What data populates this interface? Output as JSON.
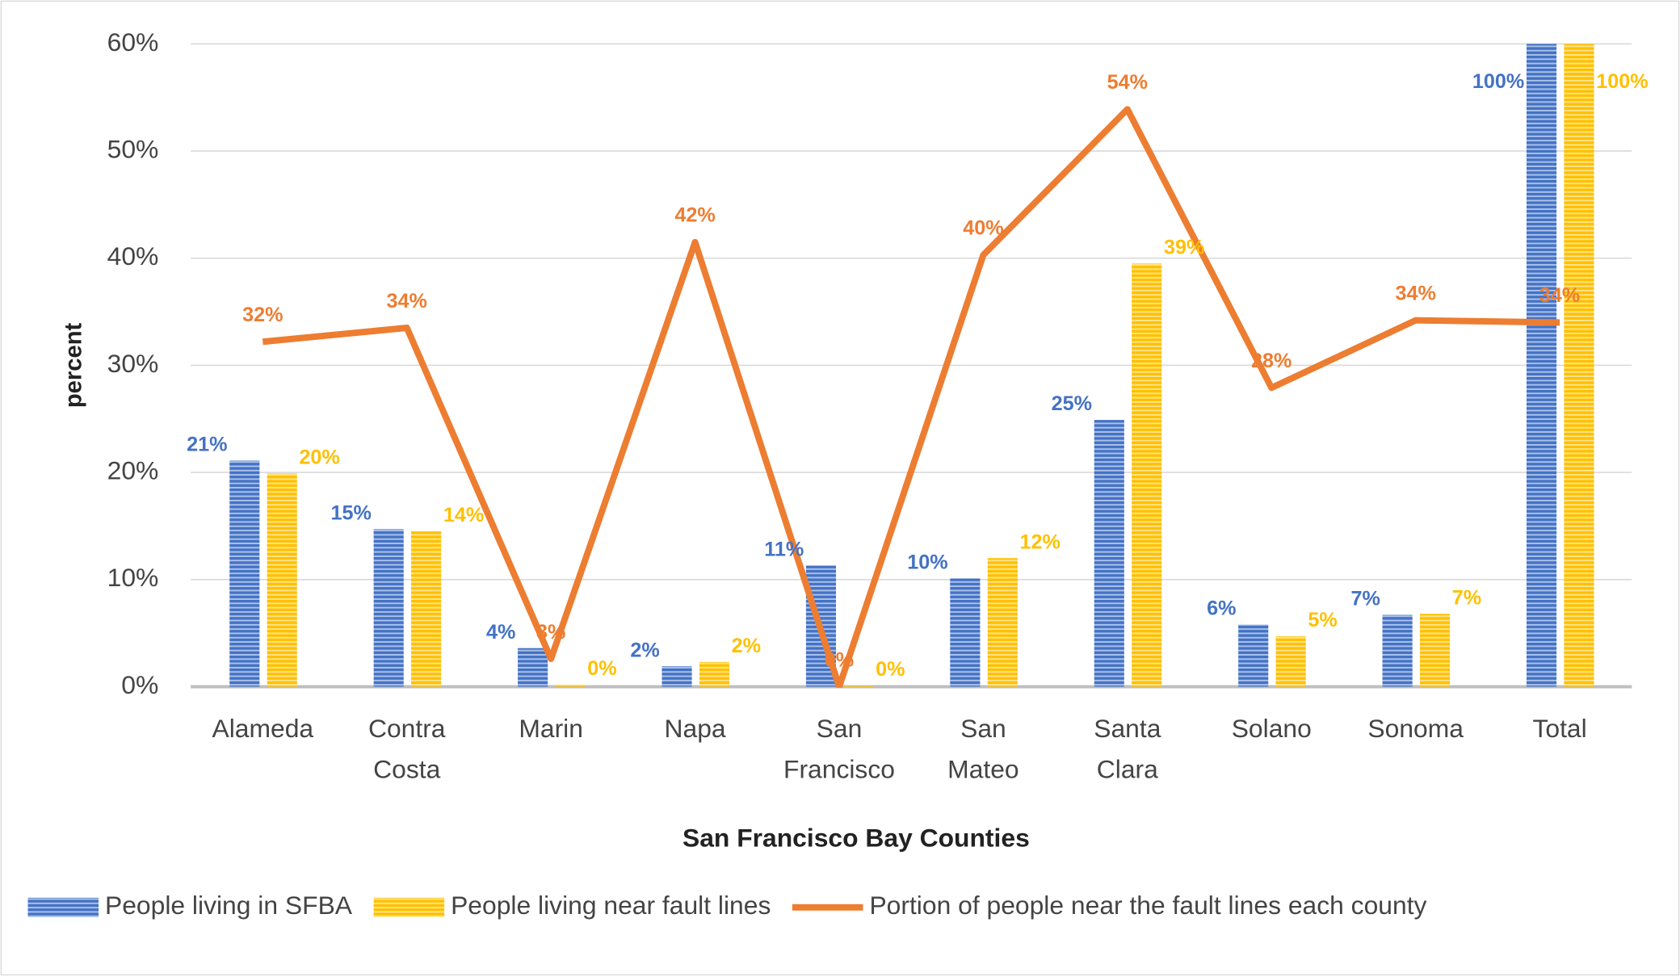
{
  "chart_data": {
    "type": "bar-line",
    "xlabel": "San Francisco Bay Counties",
    "ylabel": "percent",
    "categories": [
      "Alameda",
      "Contra Costa",
      "Marin",
      "Napa",
      "San Francisco",
      "San Mateo",
      "Santa Clara",
      "Solano",
      "Sonoma",
      "Total"
    ],
    "series": [
      {
        "name": "People living in SFBA",
        "type": "bar",
        "color": "#4472c4",
        "values": [
          21.1,
          14.7,
          3.6,
          1.9,
          11.3,
          10.1,
          24.9,
          5.8,
          6.7,
          100
        ],
        "value_labels": [
          "21%",
          "15%",
          "4%",
          "2%",
          "11%",
          "10%",
          "25%",
          "6%",
          "7%",
          "100%"
        ]
      },
      {
        "name": "People living near fault lines",
        "type": "bar",
        "color": "#ffc000",
        "values": [
          19.9,
          14.5,
          0.2,
          2.3,
          0.1,
          12.0,
          39.5,
          4.7,
          6.8,
          100
        ],
        "value_labels": [
          "20%",
          "14%",
          "0%",
          "2%",
          "0%",
          "12%",
          "39%",
          "5%",
          "7%",
          "100%"
        ]
      },
      {
        "name": "Portion of people near the fault lines each county",
        "type": "line",
        "color": "#ed7d31",
        "values": [
          32.2,
          33.5,
          2.6,
          41.5,
          0,
          40.3,
          53.9,
          27.9,
          34.2,
          34.0
        ],
        "value_labels": [
          "32%",
          "34%",
          "3%",
          "42%",
          "0%",
          "40%",
          "54%",
          "28%",
          "34%",
          "34%"
        ]
      }
    ],
    "ylim": [
      0,
      60
    ],
    "yticks": [
      {
        "value": 0,
        "label": "0%"
      },
      {
        "value": 10,
        "label": "10%"
      },
      {
        "value": 20,
        "label": "20%"
      },
      {
        "value": 30,
        "label": "30%"
      },
      {
        "value": 40,
        "label": "40%"
      },
      {
        "value": 50,
        "label": "50%"
      },
      {
        "value": 60,
        "label": "60%"
      }
    ],
    "grid": true,
    "legend": "bottom"
  }
}
